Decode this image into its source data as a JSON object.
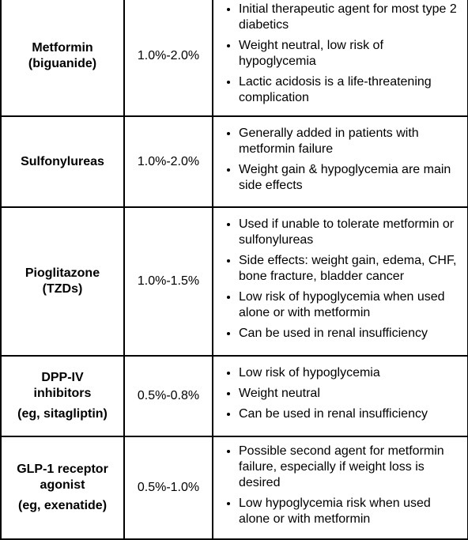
{
  "rows": [
    {
      "name_lines": [
        "Metformin",
        "(biguanide)"
      ],
      "eg": "",
      "a1c_reduction": "1.0%-2.0%",
      "notes": [
        "Initial therapeutic agent for most type 2 diabetics",
        "Weight neutral, low risk of hypoglycemia",
        "Lactic acidosis is a life-threatening complication"
      ]
    },
    {
      "name_lines": [
        "Sulfonylureas"
      ],
      "eg": "",
      "a1c_reduction": "1.0%-2.0%",
      "notes": [
        "Generally added in patients with metformin failure",
        "Weight gain & hypoglycemia are main side effects"
      ]
    },
    {
      "name_lines": [
        "Pioglitazone",
        "(TZDs)"
      ],
      "eg": "",
      "a1c_reduction": "1.0%-1.5%",
      "notes": [
        "Used if unable to tolerate metformin or sulfonylureas",
        "Side effects: weight gain, edema, CHF, bone fracture, bladder cancer",
        "Low risk of hypoglycemia when used alone or with metformin",
        "Can be used in renal insufficiency"
      ]
    },
    {
      "name_lines": [
        "DPP-IV",
        "inhibitors"
      ],
      "eg": "(eg, sitagliptin)",
      "a1c_reduction": "0.5%-0.8%",
      "notes": [
        "Low risk of hypoglycemia",
        "Weight neutral",
        "Can be used in renal insufficiency"
      ]
    },
    {
      "name_lines": [
        "GLP-1 receptor",
        "agonist"
      ],
      "eg": "(eg, exenatide)",
      "a1c_reduction": "0.5%-1.0%",
      "notes": [
        "Possible second agent for metformin failure, especially if weight loss is desired",
        "Low hypoglycemia risk when used alone or with metformin"
      ]
    }
  ]
}
